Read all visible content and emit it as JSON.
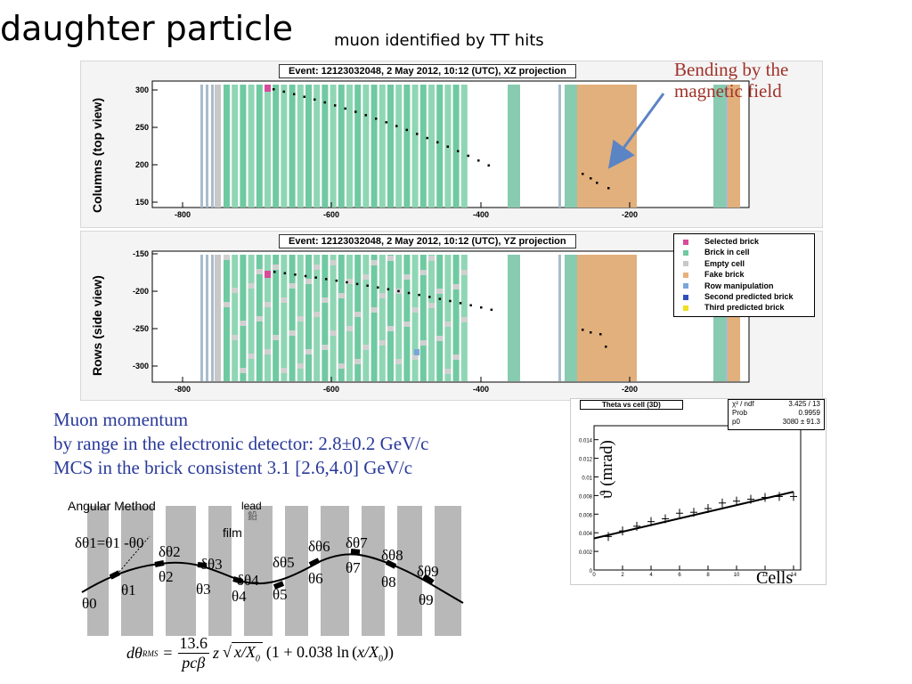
{
  "slide": {
    "title": "daughter particle",
    "subtitle": "muon identified by TT hits"
  },
  "xz_panel": {
    "event_title": "Event: 12123032048,  2 May 2012, 10:12 (UTC), XZ projection",
    "ylabel": "Columns (top view)",
    "y_ticks": [
      "300",
      "250",
      "200",
      "150"
    ],
    "x_ticks": [
      "-800",
      "-600",
      "-400",
      "-200"
    ]
  },
  "yz_panel": {
    "event_title": "Event: 12123032048,  2 May 2012, 10:12 (UTC), YZ projection",
    "ylabel": "Rows (side view)",
    "y_ticks": [
      "-150",
      "-200",
      "-250",
      "-300"
    ],
    "x_ticks": [
      "-800",
      "-600",
      "-400",
      "-200"
    ]
  },
  "annotation": {
    "bend_line1": "Bending by the",
    "bend_line2": "magnetic field"
  },
  "legend": {
    "items": [
      {
        "label": "Selected brick",
        "color": "#d94a9a"
      },
      {
        "label": "Brick in cell",
        "color": "#6fc9a1"
      },
      {
        "label": "Empty cell",
        "color": "#c8c8c8"
      },
      {
        "label": "Fake brick",
        "color": "#e8b07a"
      },
      {
        "label": "Row manipulation",
        "color": "#7aa6d8"
      },
      {
        "label": "Second predicted brick",
        "color": "#2f4fbf"
      },
      {
        "label": "Third predicted brick",
        "color": "#f0e020"
      }
    ]
  },
  "momentum": {
    "line1": "Muon momentum",
    "line2": "by range in the electronic detector: 2.8±0.2 GeV/c",
    "line3": "MCS in the brick consistent 3.1 [2.6,4.0] GeV/c"
  },
  "angular": {
    "heading": "Angular Method",
    "lead_label": "lead",
    "lead_glyph": "鉛",
    "film_label": "film",
    "delta_first": "δθ1=θ1 -θ0",
    "deltas": [
      "δθ2",
      "δθ3",
      "δθ4",
      "δθ5",
      "δθ6",
      "δθ7",
      "δθ8",
      "δθ9"
    ],
    "thetas": [
      "θ0",
      "θ1",
      "θ2",
      "θ3",
      "θ4",
      "θ5",
      "θ6",
      "θ7",
      "θ8",
      "θ9"
    ],
    "formula_lhs": "dθ",
    "formula_sup": "RMS",
    "formula_num": "13.6",
    "formula_den": "pcβ",
    "formula_z": "z",
    "formula_tail": "1 + 0.038 ln"
  },
  "theta_plot": {
    "title": "Theta vs cell (3D)",
    "ylabel": "ϑ (mrad)",
    "xlabel": "Cells",
    "fit": {
      "chi2_label": "χ² / ndf",
      "chi2_value": "3.425 / 13",
      "prob_label": "Prob",
      "prob_value": "0.9959",
      "p0_label": "p0",
      "p0_value": "3080 ±  91.3"
    },
    "y_ticks": [
      "0.014",
      "0.012",
      "0.01",
      "0.008",
      "0.006",
      "0.004",
      "0.002",
      "0"
    ],
    "x_ticks": [
      "0",
      "2",
      "4",
      "6",
      "8",
      "10",
      "12",
      "14"
    ],
    "points": [
      {
        "x": 1,
        "y": 0.0036
      },
      {
        "x": 2,
        "y": 0.0042
      },
      {
        "x": 3,
        "y": 0.0047
      },
      {
        "x": 4,
        "y": 0.0052
      },
      {
        "x": 5,
        "y": 0.0055
      },
      {
        "x": 6,
        "y": 0.0061
      },
      {
        "x": 7,
        "y": 0.0062
      },
      {
        "x": 8,
        "y": 0.0066
      },
      {
        "x": 9,
        "y": 0.0072
      },
      {
        "x": 10,
        "y": 0.0074
      },
      {
        "x": 11,
        "y": 0.0076
      },
      {
        "x": 12,
        "y": 0.0078
      },
      {
        "x": 13,
        "y": 0.0079
      },
      {
        "x": 14,
        "y": 0.0079
      }
    ]
  }
}
